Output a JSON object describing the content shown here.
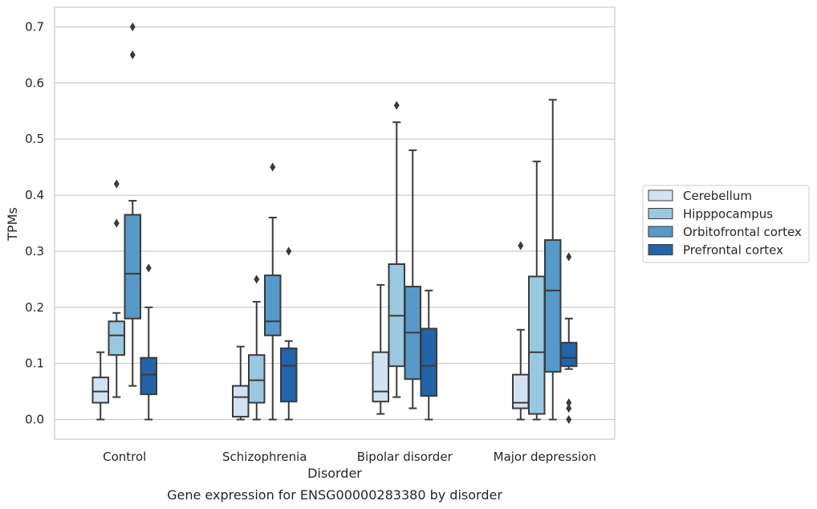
{
  "caption": "Gene expression for ENSG00000283380 by disorder",
  "chart_data": {
    "type": "boxplot",
    "title": "",
    "xlabel": "Disorder",
    "ylabel": "TPMs",
    "ylim": [
      -0.035,
      0.735
    ],
    "yticks": [
      0.0,
      0.1,
      0.2,
      0.3,
      0.4,
      0.5,
      0.6,
      0.7
    ],
    "ytick_labels": [
      "0.0",
      "0.1",
      "0.2",
      "0.3",
      "0.4",
      "0.5",
      "0.6",
      "0.7"
    ],
    "grid": "horizontal",
    "legend_position": "right",
    "categories": [
      "Control",
      "Schizophrenia",
      "Bipolar disorder",
      "Major depression"
    ],
    "series": [
      {
        "name": "Cerebellum",
        "color": "#d2e2f1",
        "boxes": [
          {
            "whislo": 0.0,
            "q1": 0.03,
            "med": 0.05,
            "q3": 0.075,
            "whishi": 0.12,
            "fliers": []
          },
          {
            "whislo": 0.0,
            "q1": 0.005,
            "med": 0.04,
            "q3": 0.06,
            "whishi": 0.13,
            "fliers": []
          },
          {
            "whislo": 0.01,
            "q1": 0.032,
            "med": 0.05,
            "q3": 0.12,
            "whishi": 0.24,
            "fliers": []
          },
          {
            "whislo": 0.0,
            "q1": 0.02,
            "med": 0.03,
            "q3": 0.08,
            "whishi": 0.16,
            "fliers": [
              0.31
            ]
          }
        ]
      },
      {
        "name": "Hipppocampus",
        "color": "#9ac8e0",
        "boxes": [
          {
            "whislo": 0.04,
            "q1": 0.115,
            "med": 0.15,
            "q3": 0.175,
            "whishi": 0.19,
            "fliers": [
              0.35,
              0.42
            ]
          },
          {
            "whislo": 0.0,
            "q1": 0.03,
            "med": 0.07,
            "q3": 0.115,
            "whishi": 0.21,
            "fliers": [
              0.25
            ]
          },
          {
            "whislo": 0.04,
            "q1": 0.095,
            "med": 0.185,
            "q3": 0.277,
            "whishi": 0.53,
            "fliers": [
              0.56
            ]
          },
          {
            "whislo": 0.0,
            "q1": 0.01,
            "med": 0.12,
            "q3": 0.255,
            "whishi": 0.46,
            "fliers": []
          }
        ]
      },
      {
        "name": "Orbitofrontal cortex",
        "color": "#5799c8",
        "boxes": [
          {
            "whislo": 0.06,
            "q1": 0.18,
            "med": 0.26,
            "q3": 0.365,
            "whishi": 0.39,
            "fliers": [
              0.65,
              0.7
            ]
          },
          {
            "whislo": 0.0,
            "q1": 0.15,
            "med": 0.175,
            "q3": 0.257,
            "whishi": 0.36,
            "fliers": [
              0.45
            ]
          },
          {
            "whislo": 0.02,
            "q1": 0.072,
            "med": 0.155,
            "q3": 0.237,
            "whishi": 0.48,
            "fliers": []
          },
          {
            "whislo": 0.0,
            "q1": 0.085,
            "med": 0.23,
            "q3": 0.32,
            "whishi": 0.57,
            "fliers": []
          }
        ]
      },
      {
        "name": "Prefrontal cortex",
        "color": "#2363a8",
        "boxes": [
          {
            "whislo": 0.0,
            "q1": 0.045,
            "med": 0.08,
            "q3": 0.11,
            "whishi": 0.2,
            "fliers": [
              0.27
            ]
          },
          {
            "whislo": 0.0,
            "q1": 0.032,
            "med": 0.096,
            "q3": 0.127,
            "whishi": 0.14,
            "fliers": [
              0.3
            ]
          },
          {
            "whislo": 0.0,
            "q1": 0.042,
            "med": 0.096,
            "q3": 0.162,
            "whishi": 0.23,
            "fliers": []
          },
          {
            "whislo": 0.09,
            "q1": 0.095,
            "med": 0.11,
            "q3": 0.137,
            "whishi": 0.18,
            "fliers": [
              0.0,
              0.02,
              0.03,
              0.29
            ]
          }
        ]
      }
    ]
  }
}
